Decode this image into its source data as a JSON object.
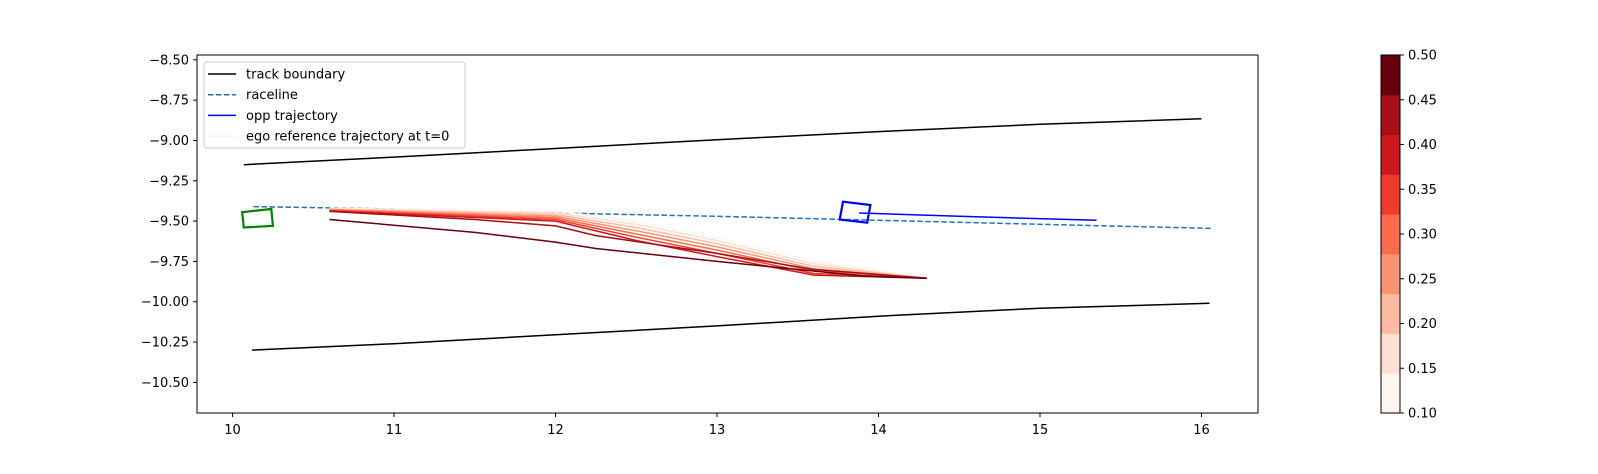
{
  "chart_data": [
    {
      "type": "line",
      "title": "",
      "xlabel": "",
      "ylabel": "",
      "xlim": [
        9.78,
        16.35
      ],
      "ylim": [
        -10.69,
        -8.47
      ],
      "x_ticks": [
        10,
        11,
        12,
        13,
        14,
        15,
        16
      ],
      "y_ticks": [
        -8.5,
        -8.75,
        -9.0,
        -9.25,
        -9.5,
        -9.75,
        -10.0,
        -10.25,
        -10.5
      ],
      "x_tick_labels": [
        "10",
        "11",
        "12",
        "13",
        "14",
        "15",
        "16"
      ],
      "y_tick_labels": [
        "−8.50",
        "−8.75",
        "−9.00",
        "−9.25",
        "−9.50",
        "−9.75",
        "−10.00",
        "−10.25",
        "−10.50"
      ],
      "grid": false,
      "legend": {
        "placement": "upper-left",
        "entries": [
          {
            "label": "track boundary",
            "color": "#000000",
            "style": "solid"
          },
          {
            "label": "raceline",
            "color": "#1f77b4",
            "style": "dashed"
          },
          {
            "label": "opp trajectory",
            "color": "#0000ff",
            "style": "solid"
          },
          {
            "label": "ego reference trajectory at t=0",
            "color": "#fff0e8",
            "style": "solid"
          }
        ]
      },
      "series": [
        {
          "name": "track boundary",
          "role": "upper_boundary",
          "color": "#000000",
          "style": "solid",
          "x": [
            10.07,
            11.0,
            12.0,
            13.0,
            14.0,
            15.0,
            16.0
          ],
          "y": [
            -9.15,
            -9.103,
            -9.05,
            -8.995,
            -8.945,
            -8.9,
            -8.865
          ]
        },
        {
          "name": "track boundary",
          "role": "lower_boundary",
          "color": "#000000",
          "style": "solid",
          "x": [
            10.12,
            11.0,
            12.0,
            13.0,
            14.0,
            15.0,
            16.05
          ],
          "y": [
            -10.3,
            -10.26,
            -10.205,
            -10.15,
            -10.09,
            -10.04,
            -10.01
          ]
        },
        {
          "name": "raceline",
          "color": "#1f77b4",
          "style": "dashed",
          "x": [
            10.13,
            11.0,
            12.0,
            13.0,
            14.0,
            15.0,
            16.07
          ],
          "y": [
            -9.41,
            -9.425,
            -9.45,
            -9.47,
            -9.495,
            -9.52,
            -9.545
          ]
        },
        {
          "name": "opp trajectory",
          "color": "#0000ff",
          "style": "solid",
          "x": [
            13.88,
            14.5,
            15.35
          ],
          "y": [
            -9.45,
            -9.47,
            -9.495
          ]
        },
        {
          "name": "ego reference trajectory at t=0",
          "color": "#fff5f0",
          "style": "solid",
          "x": [
            10.6,
            12.0,
            12.5,
            13.0,
            13.6,
            14.3
          ],
          "y": [
            -9.42,
            -9.44,
            -9.5,
            -9.6,
            -9.75,
            -9.855
          ]
        },
        {
          "name": "",
          "color": "#fee0d2",
          "style": "solid",
          "x": [
            10.6,
            12.0,
            12.5,
            13.0,
            13.6,
            14.3
          ],
          "y": [
            -9.423,
            -9.45,
            -9.52,
            -9.62,
            -9.765,
            -9.855
          ]
        },
        {
          "name": "",
          "color": "#fcbba1",
          "style": "solid",
          "x": [
            10.6,
            12.0,
            12.5,
            13.0,
            13.6,
            14.3
          ],
          "y": [
            -9.426,
            -9.46,
            -9.54,
            -9.64,
            -9.78,
            -9.855
          ]
        },
        {
          "name": "",
          "color": "#fc9272",
          "style": "solid",
          "x": [
            10.6,
            12.0,
            12.5,
            13.0,
            13.6,
            14.3
          ],
          "y": [
            -9.429,
            -9.47,
            -9.56,
            -9.66,
            -9.795,
            -9.855
          ]
        },
        {
          "name": "",
          "color": "#fb6a4a",
          "style": "solid",
          "x": [
            10.6,
            12.0,
            12.5,
            13.0,
            13.6,
            14.3
          ],
          "y": [
            -9.432,
            -9.48,
            -9.58,
            -9.68,
            -9.81,
            -9.855
          ]
        },
        {
          "name": "",
          "color": "#ef3b2c",
          "style": "solid",
          "x": [
            10.6,
            12.0,
            12.5,
            13.0,
            13.6,
            14.3
          ],
          "y": [
            -9.435,
            -9.49,
            -9.6,
            -9.7,
            -9.825,
            -9.855
          ]
        },
        {
          "name": "",
          "color": "#cb181d",
          "style": "solid",
          "x": [
            10.6,
            12.0,
            12.5,
            13.0,
            13.6,
            14.3
          ],
          "y": [
            -9.438,
            -9.5,
            -9.62,
            -9.72,
            -9.835,
            -9.855
          ]
        },
        {
          "name": "",
          "color": "#a50f15",
          "style": "solid",
          "x": [
            10.6,
            11.5,
            12.0,
            12.25,
            13.0,
            13.6,
            14.3
          ],
          "y": [
            -9.44,
            -9.49,
            -9.53,
            -9.59,
            -9.7,
            -9.8,
            -9.855
          ]
        },
        {
          "name": "",
          "color": "#67000d",
          "style": "solid",
          "x": [
            10.6,
            11.5,
            12.0,
            12.25,
            13.0,
            13.9,
            14.3
          ],
          "y": [
            -9.49,
            -9.57,
            -9.63,
            -9.67,
            -9.75,
            -9.84,
            -9.855
          ]
        }
      ],
      "shapes": [
        {
          "name": "ego vehicle box",
          "color": "#008000",
          "corners": [
            [
              10.06,
              -9.445
            ],
            [
              10.24,
              -9.425
            ],
            [
              10.25,
              -9.53
            ],
            [
              10.07,
              -9.54
            ]
          ]
        },
        {
          "name": "opponent vehicle box",
          "color": "#0000ff",
          "corners": [
            [
              13.78,
              -9.38
            ],
            [
              13.95,
              -9.4
            ],
            [
              13.93,
              -9.51
            ],
            [
              13.76,
              -9.49
            ]
          ]
        }
      ]
    },
    {
      "type": "colorbar",
      "range": [
        0.1,
        0.5
      ],
      "tick_values": [
        0.1,
        0.15,
        0.2,
        0.25,
        0.3,
        0.35,
        0.4,
        0.45,
        0.5
      ],
      "tick_labels": [
        "0.10",
        "0.15",
        "0.20",
        "0.25",
        "0.30",
        "0.35",
        "0.40",
        "0.45",
        "0.50"
      ],
      "colors": [
        "#fff5f0",
        "#fee0d2",
        "#fcbba1",
        "#fc9272",
        "#fb6a4a",
        "#ef3b2c",
        "#cb181d",
        "#a50f15",
        "#67000d"
      ]
    }
  ]
}
